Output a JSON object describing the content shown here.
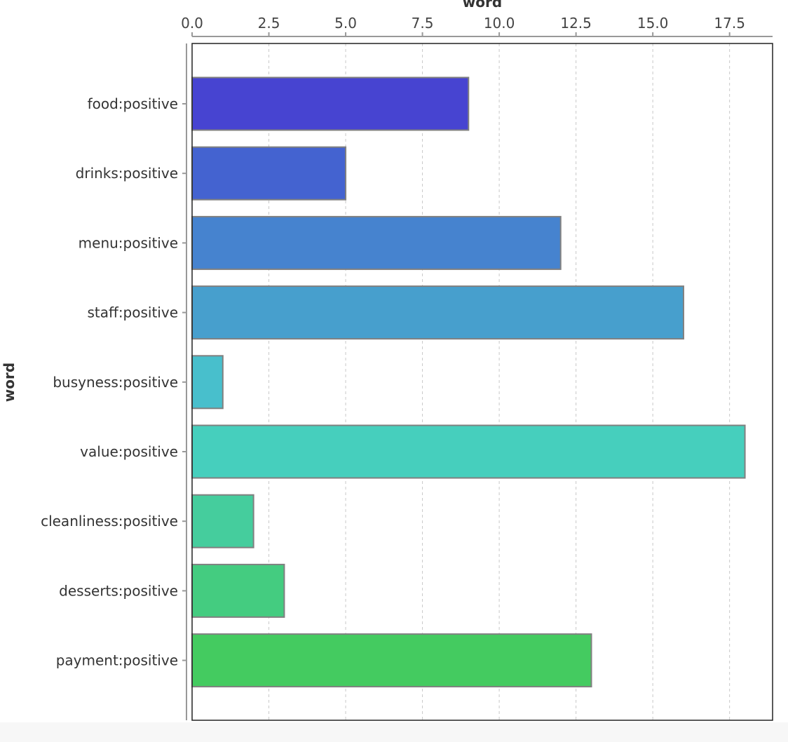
{
  "chart_data": {
    "type": "bar",
    "orientation": "horizontal",
    "xlabel": "word",
    "ylabel": "word",
    "x_axis_position": "top",
    "xlim": [
      0,
      18.9
    ],
    "xticks": [
      0,
      2.5,
      5,
      7.5,
      10,
      12.5,
      15,
      17.5
    ],
    "xtick_labels": [
      "0.0",
      "2.5",
      "5.0",
      "7.5",
      "10.0",
      "12.5",
      "15.0",
      "17.5"
    ],
    "grid": "vertical dashed",
    "categories": [
      "food:positive",
      "drinks:positive",
      "menu:positive",
      "staff:positive",
      "busyness:positive",
      "value:positive",
      "cleanliness:positive",
      "desserts:positive",
      "payment:positive"
    ],
    "values": [
      9,
      5,
      12,
      16,
      1,
      18,
      2,
      3,
      13
    ],
    "colors": [
      "#4744d1",
      "#4463d0",
      "#4683cf",
      "#479fcd",
      "#48bfcc",
      "#46cfbd",
      "#45cd9d",
      "#44cc80",
      "#44cb60"
    ],
    "bar_edge_color": "#808080",
    "grid_color": "#c8c8c8",
    "frame_color": "#222222",
    "axis_color": "#999999"
  }
}
